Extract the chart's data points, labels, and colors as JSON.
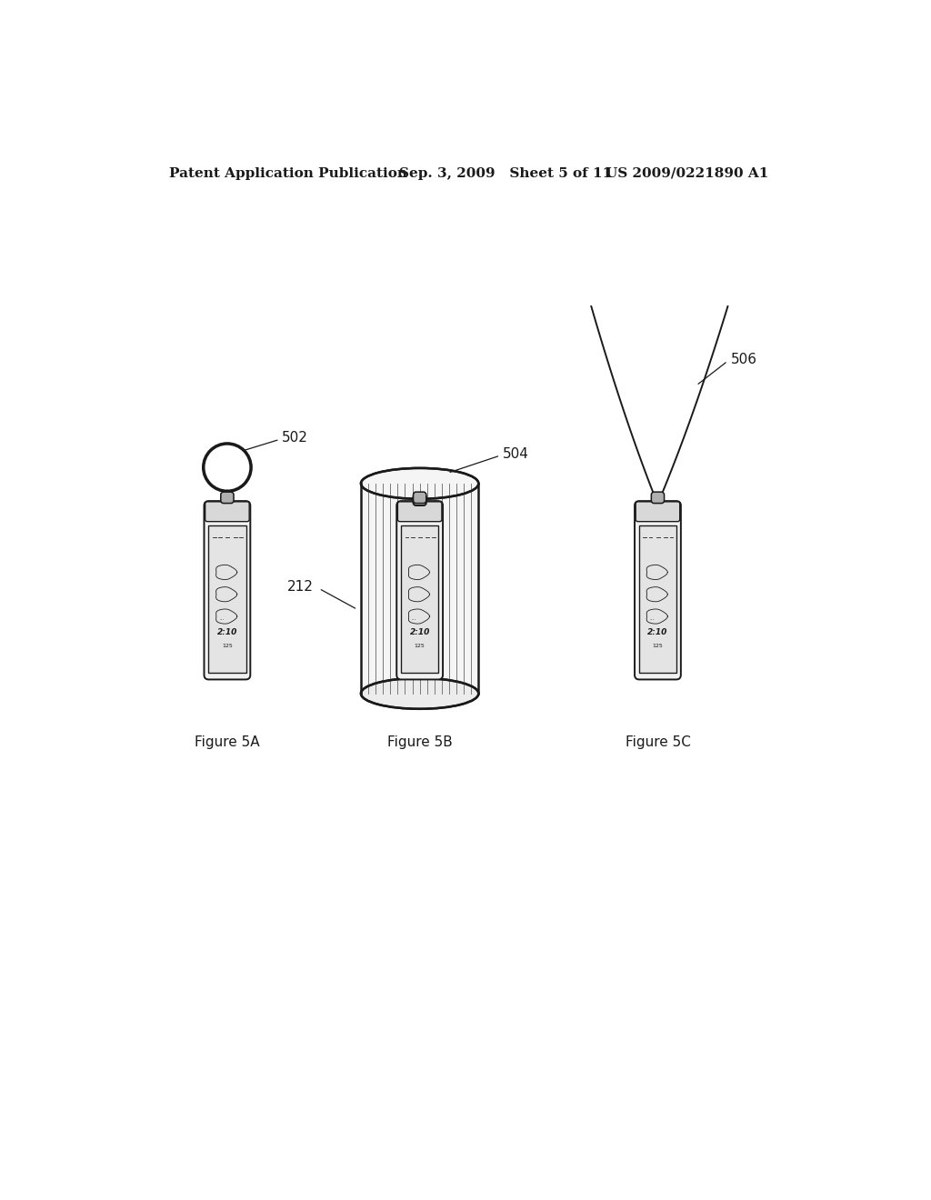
{
  "background_color": "#ffffff",
  "header_left": "Patent Application Publication",
  "header_mid": "Sep. 3, 2009   Sheet 5 of 11",
  "header_right": "US 2009/0221890 A1",
  "header_fontsize": 11,
  "fig_labels": [
    "Figure 5A",
    "Figure 5B",
    "Figure 5C"
  ],
  "fig_label_fontsize": 11,
  "callout_502": "502",
  "callout_504": "504",
  "callout_212": "212",
  "callout_506": "506",
  "line_color": "#1a1a1a"
}
